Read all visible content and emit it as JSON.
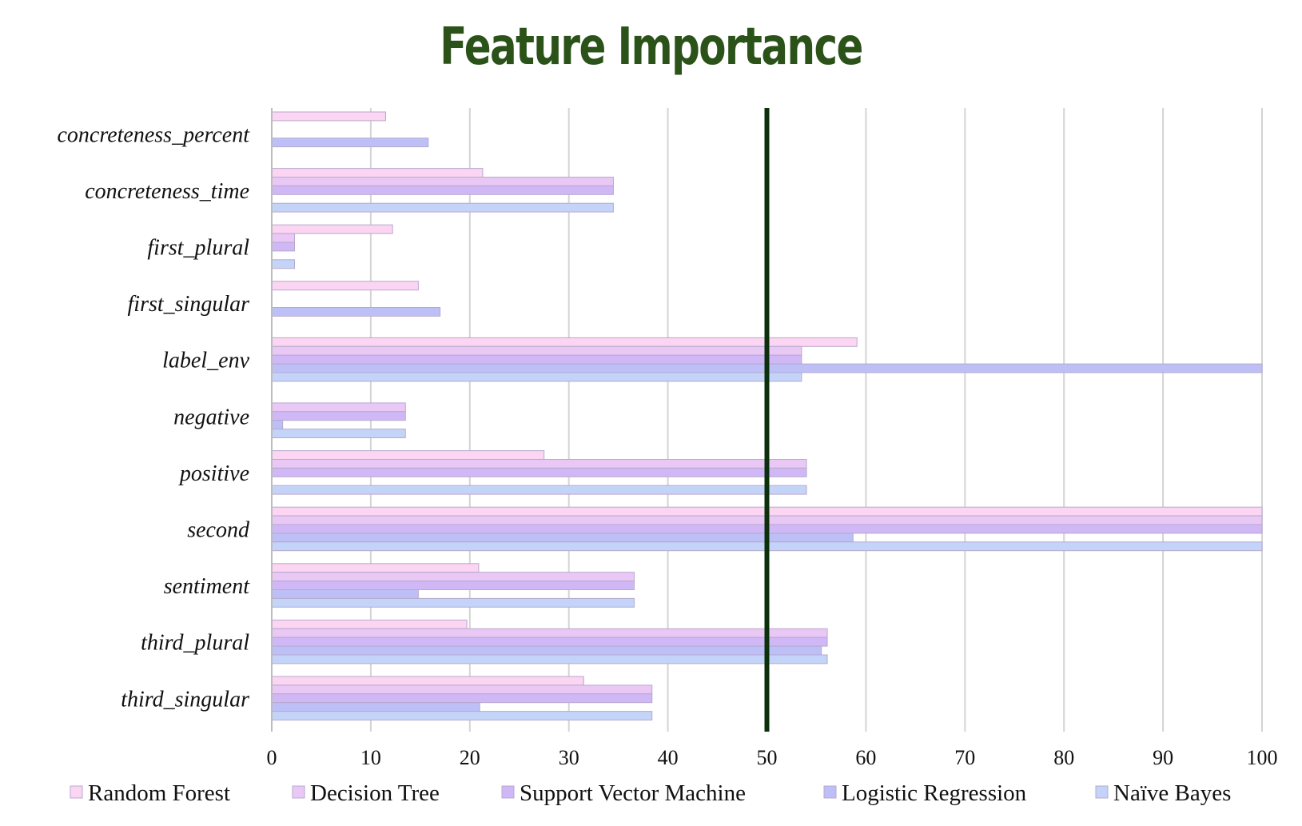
{
  "chart_data": {
    "type": "bar",
    "orientation": "horizontal",
    "title": "Feature Importance",
    "xlabel": "",
    "ylabel": "",
    "xlim": [
      0,
      100
    ],
    "xticks": [
      0,
      10,
      20,
      30,
      40,
      50,
      60,
      70,
      80,
      90,
      100
    ],
    "grid": "vertical",
    "reference_line": {
      "value": 50,
      "color": "#0b300b"
    },
    "legend_position": "bottom",
    "categories": [
      "concreteness_percent",
      "concreteness_time",
      "first_plural",
      "first_singular",
      "label_env",
      "negative",
      "positive",
      "second",
      "sentiment",
      "third_plural",
      "third_singular"
    ],
    "series": [
      {
        "name": "Random Forest",
        "color": "#fbd5f1",
        "values": [
          11.5,
          21.3,
          12.2,
          14.8,
          59.1,
          0,
          27.5,
          100,
          20.9,
          19.7,
          31.5
        ]
      },
      {
        "name": "Decision Tree",
        "color": "#eac8f6",
        "values": [
          0,
          34.5,
          2.3,
          0,
          53.5,
          13.5,
          54,
          100,
          36.6,
          56.1,
          38.4
        ]
      },
      {
        "name": "Support Vector Machine",
        "color": "#cfb8f5",
        "values": [
          0,
          34.5,
          2.3,
          0,
          53.5,
          13.5,
          54,
          100,
          36.6,
          56.1,
          38.4
        ]
      },
      {
        "name": "Logistic Regression",
        "color": "#bcc0f6",
        "values": [
          15.8,
          0,
          0,
          17,
          100,
          1.1,
          0,
          58.7,
          14.8,
          55.5,
          21
        ]
      },
      {
        "name": "Naïve Bayes",
        "color": "#c4d4f8",
        "values": [
          0,
          34.5,
          2.3,
          0,
          53.5,
          13.5,
          54,
          100,
          36.6,
          56.1,
          38.4
        ]
      }
    ]
  }
}
